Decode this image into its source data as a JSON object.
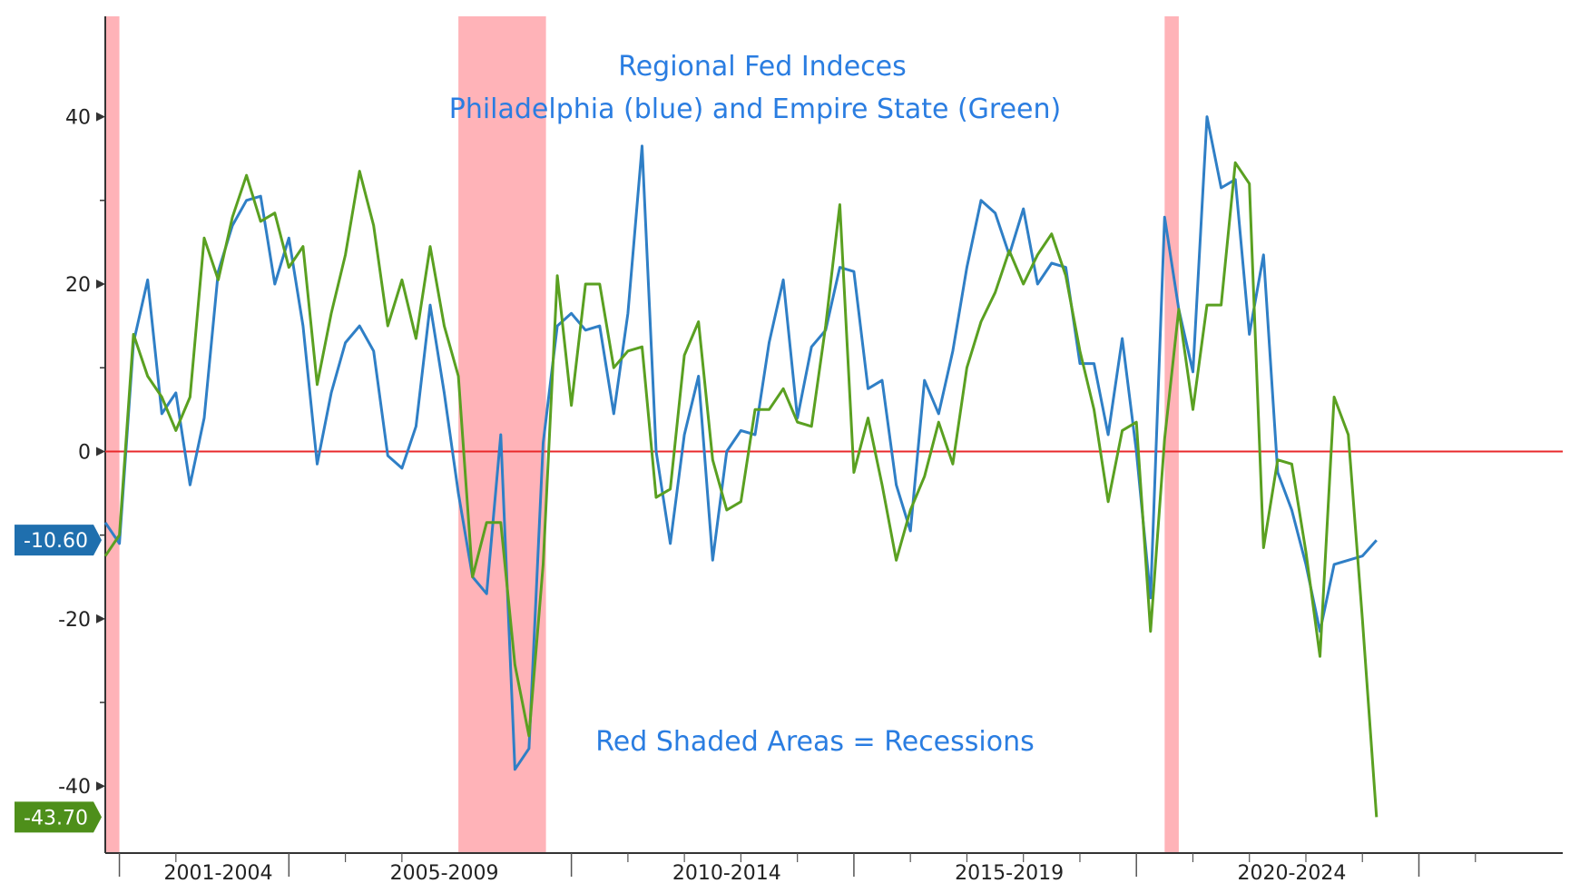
{
  "chart_data": {
    "type": "line",
    "title": "Regional Fed Indeces",
    "subtitle": "Philadelphia (blue) and Empire State (Green)",
    "annotation": "Red Shaded Areas = Recessions",
    "x_range": [
      2000.5,
      2025.3
    ],
    "ylim": [
      -48,
      52
    ],
    "y_ticks": [
      40,
      20,
      0,
      -20,
      -40
    ],
    "y_minor_ticks": [
      30,
      10,
      -10,
      -30
    ],
    "x_ticks": [
      {
        "label": "2001-2004",
        "x": 2002.5
      },
      {
        "label": "2005-2009",
        "x": 2006.5
      },
      {
        "label": "2010-2014",
        "x": 2011.5
      },
      {
        "label": "2015-2019",
        "x": 2016.5
      },
      {
        "label": "2020-2024",
        "x": 2021.5
      }
    ],
    "x_major_dividers": [
      2000.75,
      2003.75,
      2008.75,
      2013.75,
      2018.75,
      2023.75
    ],
    "x_minor_dividers": [
      2001.75,
      2004.75,
      2005.75,
      2009.75,
      2010.75,
      2011.75,
      2012.75,
      2014.75,
      2015.75,
      2016.75,
      2017.75,
      2019.75,
      2020.75,
      2021.75,
      2022.75,
      2024.75
    ],
    "recessions": [
      [
        2000.5,
        2000.75
      ],
      [
        2006.75,
        2008.3
      ],
      [
        2019.25,
        2019.5
      ]
    ],
    "zero_line_color": "#e8292b",
    "recession_color": "#ffb3b8",
    "series": [
      {
        "name": "Philadelphia",
        "color": "#2f7fc6",
        "last_value": "-10.60",
        "points": [
          [
            2000.5,
            -8.5
          ],
          [
            2000.75,
            -11
          ],
          [
            2001,
            13
          ],
          [
            2001.25,
            20.5
          ],
          [
            2001.5,
            4.5
          ],
          [
            2001.75,
            7
          ],
          [
            2002,
            -4
          ],
          [
            2002.25,
            4
          ],
          [
            2002.5,
            21.5
          ],
          [
            2002.75,
            27
          ],
          [
            2003,
            30
          ],
          [
            2003.25,
            30.5
          ],
          [
            2003.5,
            20
          ],
          [
            2003.75,
            25.5
          ],
          [
            2004,
            15
          ],
          [
            2004.25,
            -1.5
          ],
          [
            2004.5,
            7
          ],
          [
            2004.75,
            13
          ],
          [
            2005,
            15
          ],
          [
            2005.25,
            12
          ],
          [
            2005.5,
            -0.5
          ],
          [
            2005.75,
            -2
          ],
          [
            2006,
            3
          ],
          [
            2006.25,
            17.5
          ],
          [
            2006.5,
            7
          ],
          [
            2006.75,
            -5
          ],
          [
            2007,
            -15
          ],
          [
            2007.25,
            -17
          ],
          [
            2007.5,
            2
          ],
          [
            2007.75,
            -38
          ],
          [
            2008,
            -35.5
          ],
          [
            2008.25,
            1
          ],
          [
            2008.5,
            15
          ],
          [
            2008.75,
            16.5
          ],
          [
            2009,
            14.5
          ],
          [
            2009.25,
            15
          ],
          [
            2009.5,
            4.5
          ],
          [
            2009.75,
            16.5
          ],
          [
            2010,
            36.5
          ],
          [
            2010.25,
            0
          ],
          [
            2010.5,
            -11
          ],
          [
            2010.75,
            2
          ],
          [
            2011,
            9
          ],
          [
            2011.25,
            -13
          ],
          [
            2011.5,
            0
          ],
          [
            2011.75,
            2.5
          ],
          [
            2012,
            2
          ],
          [
            2012.25,
            13
          ],
          [
            2012.5,
            20.5
          ],
          [
            2012.75,
            4
          ],
          [
            2013,
            12.5
          ],
          [
            2013.25,
            14.5
          ],
          [
            2013.5,
            22
          ],
          [
            2013.75,
            21.5
          ],
          [
            2014,
            7.5
          ],
          [
            2014.25,
            8.5
          ],
          [
            2014.5,
            -4
          ],
          [
            2014.75,
            -9.5
          ],
          [
            2015,
            8.5
          ],
          [
            2015.25,
            4.5
          ],
          [
            2015.5,
            12
          ],
          [
            2015.75,
            22
          ],
          [
            2016,
            30
          ],
          [
            2016.25,
            28.5
          ],
          [
            2016.5,
            23.5
          ],
          [
            2016.75,
            29
          ],
          [
            2017,
            20
          ],
          [
            2017.25,
            22.5
          ],
          [
            2017.5,
            22
          ],
          [
            2017.75,
            10.5
          ],
          [
            2018,
            10.5
          ],
          [
            2018.25,
            2
          ],
          [
            2018.5,
            13.5
          ],
          [
            2018.75,
            0
          ],
          [
            2019,
            -17.5
          ],
          [
            2019.25,
            28
          ],
          [
            2019.5,
            17
          ],
          [
            2019.75,
            9.5
          ],
          [
            2020,
            40
          ],
          [
            2020.25,
            31.5
          ],
          [
            2020.5,
            32.5
          ],
          [
            2020.75,
            14
          ],
          [
            2021,
            23.5
          ],
          [
            2021.25,
            -2.5
          ],
          [
            2021.5,
            -7
          ],
          [
            2021.75,
            -13.5
          ],
          [
            2022,
            -21.5
          ],
          [
            2022.25,
            -13.5
          ],
          [
            2022.5,
            -13
          ],
          [
            2022.75,
            -12.5
          ],
          [
            2023,
            -10.6
          ]
        ]
      },
      {
        "name": "Empire State",
        "color": "#5aa021",
        "last_value": "-43.70",
        "points": [
          [
            2000.5,
            -12.5
          ],
          [
            2000.75,
            -10
          ],
          [
            2001,
            14
          ],
          [
            2001.25,
            9
          ],
          [
            2001.5,
            6.5
          ],
          [
            2001.75,
            2.5
          ],
          [
            2002,
            6.5
          ],
          [
            2002.25,
            25.5
          ],
          [
            2002.5,
            20.5
          ],
          [
            2002.75,
            28
          ],
          [
            2003,
            33
          ],
          [
            2003.25,
            27.5
          ],
          [
            2003.5,
            28.5
          ],
          [
            2003.75,
            22
          ],
          [
            2004,
            24.5
          ],
          [
            2004.25,
            8
          ],
          [
            2004.5,
            16.5
          ],
          [
            2004.75,
            23.5
          ],
          [
            2005,
            33.5
          ],
          [
            2005.25,
            27
          ],
          [
            2005.5,
            15
          ],
          [
            2005.75,
            20.5
          ],
          [
            2006,
            13.5
          ],
          [
            2006.25,
            24.5
          ],
          [
            2006.5,
            15
          ],
          [
            2006.75,
            9
          ],
          [
            2007,
            -15
          ],
          [
            2007.25,
            -8.5
          ],
          [
            2007.5,
            -8.5
          ],
          [
            2007.75,
            -25.5
          ],
          [
            2008,
            -34
          ],
          [
            2008.25,
            -13.5
          ],
          [
            2008.5,
            21
          ],
          [
            2008.75,
            5.5
          ],
          [
            2009,
            20
          ],
          [
            2009.25,
            20
          ],
          [
            2009.5,
            10
          ],
          [
            2009.75,
            12
          ],
          [
            2010,
            12.5
          ],
          [
            2010.25,
            -5.5
          ],
          [
            2010.5,
            -4.5
          ],
          [
            2010.75,
            11.5
          ],
          [
            2011,
            15.5
          ],
          [
            2011.25,
            -1
          ],
          [
            2011.5,
            -7
          ],
          [
            2011.75,
            -6
          ],
          [
            2012,
            5
          ],
          [
            2012.25,
            5
          ],
          [
            2012.5,
            7.5
          ],
          [
            2012.75,
            3.5
          ],
          [
            2013,
            3
          ],
          [
            2013.25,
            15
          ],
          [
            2013.5,
            29.5
          ],
          [
            2013.75,
            -2.5
          ],
          [
            2014,
            4
          ],
          [
            2014.25,
            -4
          ],
          [
            2014.5,
            -13
          ],
          [
            2014.75,
            -7
          ],
          [
            2015,
            -3
          ],
          [
            2015.25,
            3.5
          ],
          [
            2015.5,
            -1.5
          ],
          [
            2015.75,
            10
          ],
          [
            2016,
            15.5
          ],
          [
            2016.25,
            19
          ],
          [
            2016.5,
            24
          ],
          [
            2016.75,
            20
          ],
          [
            2017,
            23.5
          ],
          [
            2017.25,
            26
          ],
          [
            2017.5,
            21
          ],
          [
            2017.75,
            12
          ],
          [
            2018,
            5
          ],
          [
            2018.25,
            -6
          ],
          [
            2018.5,
            2.5
          ],
          [
            2018.75,
            3.5
          ],
          [
            2019,
            -21.5
          ],
          [
            2019.25,
            1.5
          ],
          [
            2019.5,
            17
          ],
          [
            2019.75,
            5
          ],
          [
            2020,
            17.5
          ],
          [
            2020.25,
            17.5
          ],
          [
            2020.5,
            34.5
          ],
          [
            2020.75,
            32
          ],
          [
            2021,
            -11.5
          ],
          [
            2021.25,
            -1
          ],
          [
            2021.5,
            -1.5
          ],
          [
            2021.75,
            -12
          ],
          [
            2022,
            -24.5
          ],
          [
            2022.25,
            6.5
          ],
          [
            2022.5,
            2
          ],
          [
            2022.75,
            -20
          ],
          [
            2023,
            -43.7
          ]
        ]
      }
    ]
  }
}
